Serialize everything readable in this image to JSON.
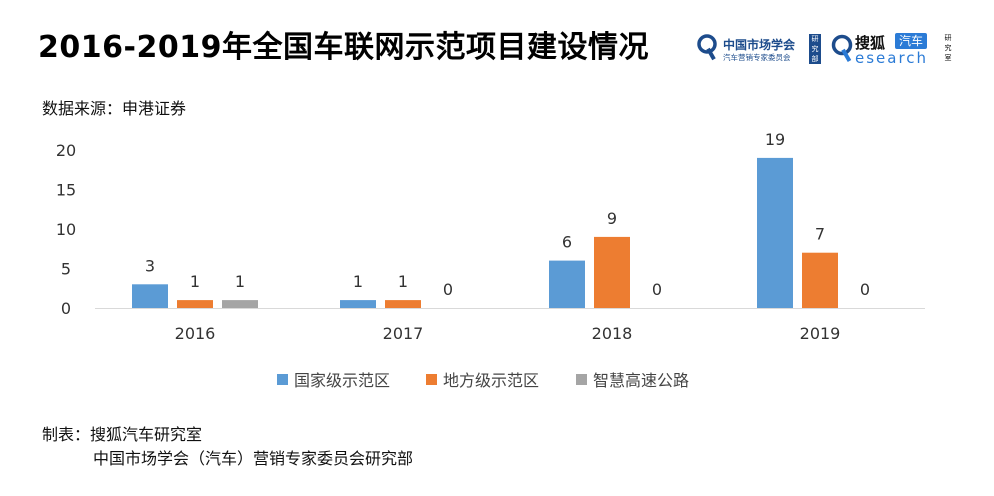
{
  "header": {
    "title": "2016-2019年全国车联网示范项目建设情况",
    "source": "数据来源：申港证券"
  },
  "logos": {
    "left": {
      "name": "中国市场学会",
      "subtitle": "汽车营销专家委员会",
      "tag": "研究部"
    },
    "right": {
      "name": "搜狐",
      "car": "汽车",
      "word": "esearch",
      "tag": "研究室"
    }
  },
  "chart_data": {
    "type": "bar",
    "categories": [
      "2016",
      "2017",
      "2018",
      "2019"
    ],
    "series": [
      {
        "name": "国家级示范区",
        "values": [
          3,
          1,
          6,
          19
        ],
        "color": "#5b9bd5"
      },
      {
        "name": "地方级示范区",
        "values": [
          1,
          1,
          9,
          7
        ],
        "color": "#ed7d31"
      },
      {
        "name": "智慧高速公路",
        "values": [
          1,
          0,
          0,
          0
        ],
        "color": "#a5a5a5"
      }
    ],
    "ylim": [
      0,
      20
    ],
    "yticks": [
      0,
      5,
      10,
      15,
      20
    ],
    "grid": false,
    "legend": "bottom",
    "data_labels": true
  },
  "credits": {
    "line1": "制表：搜狐汽车研究室",
    "line2": "中国市场学会（汽车）营销专家委员会研究部"
  }
}
